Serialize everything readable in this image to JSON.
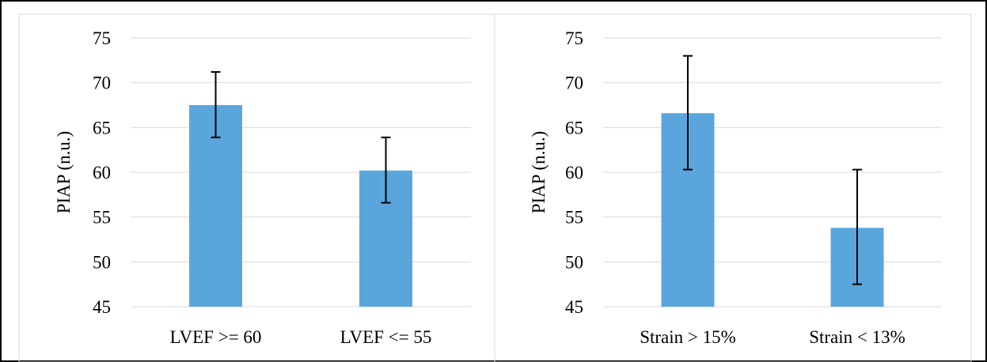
{
  "colors": {
    "bar": "#5aa6dc",
    "grid": "#d9d9d9",
    "border": "#000000",
    "error_bar": "#000000"
  },
  "chart_data": [
    {
      "type": "bar",
      "title": "",
      "xlabel": "",
      "ylabel": "PIAP (n.u.)",
      "ylim": [
        45,
        75
      ],
      "yticks": [
        45,
        50,
        55,
        60,
        65,
        70,
        75
      ],
      "grid": true,
      "categories": [
        "LVEF >= 60",
        "LVEF <= 55"
      ],
      "values": [
        67.5,
        60.2
      ],
      "error_low": [
        63.9,
        56.6
      ],
      "error_high": [
        71.2,
        63.9
      ]
    },
    {
      "type": "bar",
      "title": "",
      "xlabel": "",
      "ylabel": "PIAP (n.u.)",
      "ylim": [
        45,
        75
      ],
      "yticks": [
        45,
        50,
        55,
        60,
        65,
        70,
        75
      ],
      "grid": true,
      "categories": [
        "Strain > 15%",
        "Strain < 13%"
      ],
      "values": [
        66.6,
        53.8
      ],
      "error_low": [
        60.3,
        47.5
      ],
      "error_high": [
        73.0,
        60.3
      ]
    }
  ]
}
